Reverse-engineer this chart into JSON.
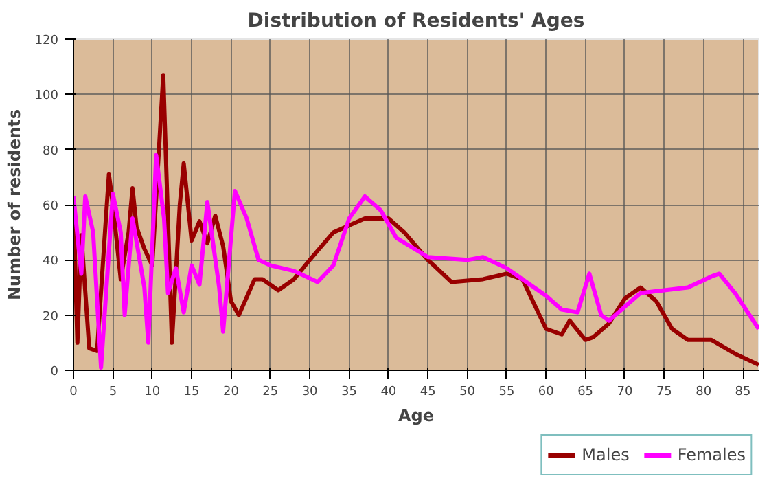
{
  "chart_data": {
    "type": "line",
    "title": "Distribution of Residents' Ages",
    "xlabel": "Age",
    "ylabel": "Number of residents",
    "xlim": [
      0,
      87
    ],
    "ylim": [
      0,
      120
    ],
    "xticks": [
      0,
      5,
      10,
      15,
      20,
      25,
      30,
      35,
      40,
      45,
      50,
      55,
      60,
      65,
      70,
      75,
      80,
      85
    ],
    "yticks": [
      0,
      20,
      40,
      60,
      80,
      100,
      120
    ],
    "grid": true,
    "legend": "bottom",
    "line_style": "solid",
    "marker": "none",
    "series": [
      {
        "name": "Males",
        "color": "#990000",
        "x": [
          0,
          0.5,
          1,
          2,
          3,
          4,
          4.5,
          5,
          6,
          7,
          7.5,
          8,
          9,
          10,
          11.4,
          12.5,
          13.5,
          14,
          15,
          16,
          17,
          18,
          19,
          20,
          21,
          23,
          24,
          26,
          28,
          30,
          33,
          37,
          40,
          42,
          45,
          48,
          52,
          55,
          57,
          60,
          62,
          63,
          65,
          66,
          68,
          70,
          72,
          74,
          76,
          78,
          81,
          84,
          87
        ],
        "values": [
          60,
          10,
          49,
          8,
          7,
          50,
          71,
          60,
          33,
          50,
          66,
          52,
          44,
          38,
          107,
          10,
          60,
          75,
          47,
          54,
          46,
          56,
          45,
          25,
          20,
          33,
          33,
          29,
          33,
          40,
          50,
          55,
          55,
          50,
          40,
          32,
          33,
          35,
          33,
          15,
          13,
          18,
          11,
          12,
          17,
          26,
          30,
          25,
          15,
          11,
          11,
          6,
          2
        ]
      },
      {
        "name": "Females",
        "color": "#ff00ff",
        "x": [
          0,
          1,
          1.5,
          2.5,
          3.5,
          5,
          6,
          6.5,
          7.5,
          9,
          9.5,
          10.5,
          11.5,
          12,
          13,
          14,
          15,
          16,
          17,
          18.5,
          19,
          20.5,
          22,
          23.5,
          25,
          28,
          31,
          33,
          35,
          37,
          39,
          41,
          45,
          50,
          52,
          55,
          57,
          60,
          62,
          64,
          65.5,
          67,
          68,
          70,
          72,
          75,
          78,
          81,
          82,
          84,
          87
        ],
        "values": [
          63,
          35,
          63,
          50,
          1,
          64,
          50,
          20,
          55,
          30,
          10,
          78,
          55,
          28,
          37,
          21,
          38,
          31,
          61,
          30,
          14,
          65,
          55,
          40,
          38,
          36,
          32,
          38,
          55,
          63,
          58,
          48,
          41,
          40,
          41,
          37,
          33,
          27,
          22,
          21,
          35,
          20,
          18,
          23,
          28,
          29,
          30,
          34,
          35,
          28,
          15
        ]
      }
    ]
  }
}
